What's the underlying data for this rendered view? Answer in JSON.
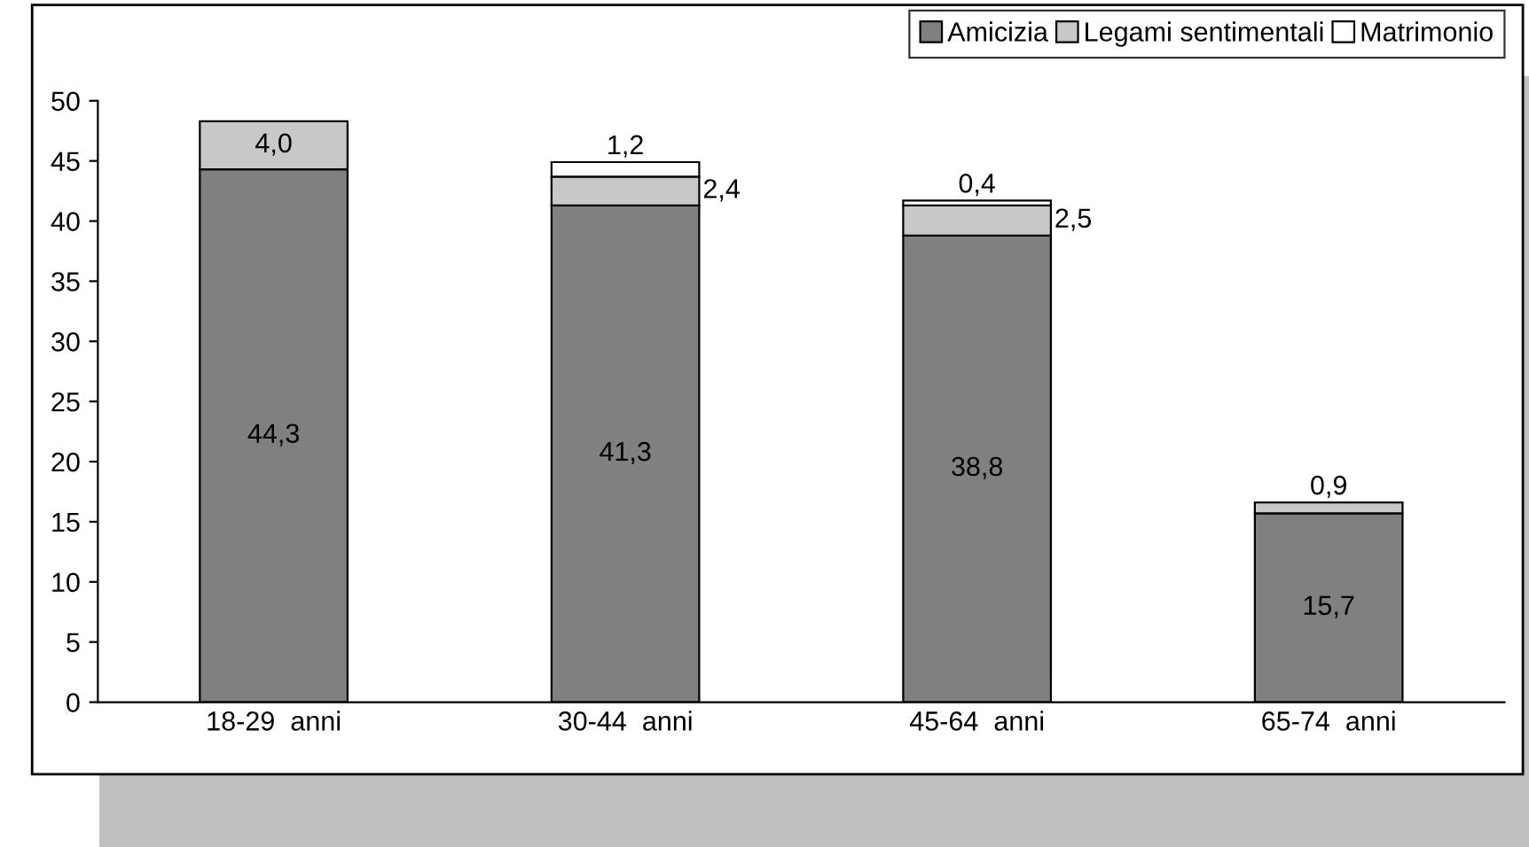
{
  "chart_data": {
    "type": "bar",
    "stacked": true,
    "categories": [
      "18-29  anni",
      "30-44  anni",
      "45-64  anni",
      "65-74  anni"
    ],
    "series": [
      {
        "name": "Amicizia",
        "color": "#808080",
        "values": [
          44.3,
          41.3,
          38.8,
          15.7
        ],
        "value_labels": [
          "44,3",
          "41,3",
          "38,8",
          "15,7"
        ]
      },
      {
        "name": "Legami sentimentali",
        "color": "#c8c8c8",
        "values": [
          4.0,
          2.4,
          2.5,
          0.9
        ],
        "value_labels": [
          "4,0",
          "2,4",
          "2,5",
          "0,9"
        ]
      },
      {
        "name": "Matrimonio",
        "color": "#ffffff",
        "values": [
          null,
          1.2,
          0.4,
          null
        ],
        "value_labels": [
          null,
          "1,2",
          "0,4",
          null
        ]
      }
    ],
    "ylim": [
      0,
      50
    ],
    "yticks": [
      0,
      5,
      10,
      15,
      20,
      25,
      30,
      35,
      40,
      45,
      50
    ],
    "grid": false,
    "legend": "top right"
  }
}
